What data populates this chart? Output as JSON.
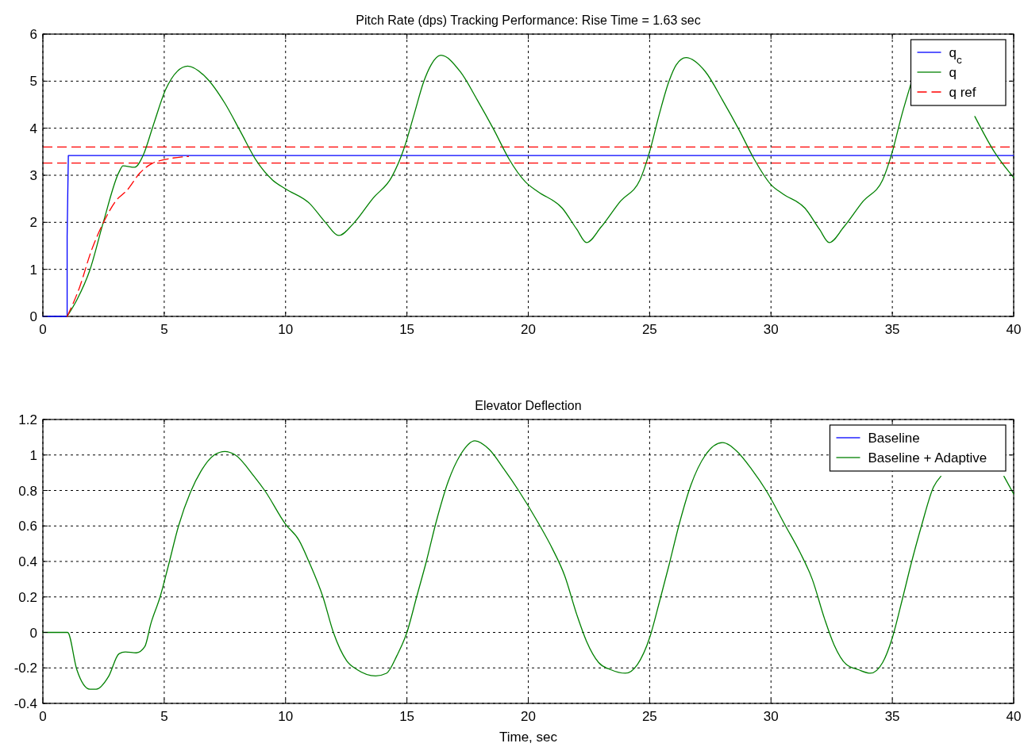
{
  "chart_data": [
    {
      "type": "line",
      "title": "Pitch Rate (dps) Tracking Performance: Rise Time = 1.63 sec",
      "xlim": [
        0,
        40
      ],
      "xticks": [
        0,
        5,
        10,
        15,
        20,
        25,
        30,
        35,
        40
      ],
      "ylim": [
        0,
        6
      ],
      "yticks": [
        0,
        1,
        2,
        3,
        4,
        5,
        6
      ],
      "grid": true,
      "legend": "top right",
      "series": [
        {
          "name": "q$_{c}$",
          "color": "#0000ff",
          "line_style": "solid",
          "x": [
            0,
            1,
            1,
            1.05,
            40
          ],
          "values": [
            0,
            0,
            1.7,
            3.42,
            3.42
          ]
        },
        {
          "name": "q",
          "color": "#008000",
          "line_style": "solid",
          "x": [
            1,
            1.4,
            1.94,
            2.49,
            3.14,
            3.3,
            3.79,
            4.12,
            4.56,
            5.05,
            5.54,
            5.97,
            6.74,
            7.5,
            8.15,
            8.81,
            9.46,
            10.0,
            10.99,
            11.64,
            12.19,
            12.84,
            13.6,
            14.37,
            14.9,
            15.3,
            15.7,
            16.0,
            16.4,
            17.2,
            17.9,
            18.6,
            19.2,
            19.9,
            20.4,
            21.4,
            22.0,
            22.4,
            23.0,
            23.8,
            24.6,
            25.0,
            25.4,
            25.8,
            26.1,
            26.5,
            27.3,
            28.0,
            28.7,
            29.3,
            30.0,
            30.5,
            31.4,
            32.0,
            32.4,
            33.0,
            33.8,
            34.6,
            35.0,
            35.4,
            35.8,
            36.9,
            38.4,
            39.2,
            40
          ],
          "values": [
            0,
            0.35,
            0.99,
            2.0,
            3.07,
            3.2,
            3.17,
            3.41,
            4.08,
            4.81,
            5.21,
            5.32,
            5.07,
            4.53,
            3.92,
            3.3,
            2.9,
            2.71,
            2.4,
            2.0,
            1.72,
            2.0,
            2.51,
            2.96,
            3.6,
            4.3,
            5.0,
            5.35,
            5.55,
            5.2,
            4.6,
            3.95,
            3.35,
            2.85,
            2.65,
            2.3,
            1.85,
            1.57,
            1.9,
            2.45,
            2.9,
            3.5,
            4.3,
            5.0,
            5.35,
            5.5,
            5.2,
            4.6,
            3.95,
            3.35,
            2.8,
            2.6,
            2.3,
            1.85,
            1.57,
            1.9,
            2.45,
            2.9,
            3.5,
            4.3,
            5.0,
            null,
            4.25,
            3.5,
            2.95
          ]
        },
        {
          "name": "q ref",
          "color": "#ff0000",
          "line_style": "dashed",
          "x": [
            1,
            1.5,
            2,
            2.5,
            3,
            3.5,
            4,
            4.5,
            5,
            6
          ],
          "values": [
            0,
            0.6,
            1.4,
            2.0,
            2.45,
            2.7,
            3.05,
            3.25,
            3.33,
            3.4
          ]
        }
      ],
      "ref_lines": [
        {
          "axis": "y",
          "value": 3.6,
          "color": "#ff0000",
          "line_style": "dashed"
        },
        {
          "axis": "y",
          "value": 3.26,
          "color": "#ff0000",
          "line_style": "dashed"
        }
      ]
    },
    {
      "type": "line",
      "title": "Elevator Deflection",
      "xlabel": "Time, sec",
      "xlim": [
        0,
        40
      ],
      "xticks": [
        0,
        5,
        10,
        15,
        20,
        25,
        30,
        35,
        40
      ],
      "ylim": [
        -0.4,
        1.2
      ],
      "yticks": [
        -0.4,
        -0.2,
        0,
        0.2,
        0.4,
        0.6,
        0.8,
        1,
        1.2
      ],
      "grid": true,
      "legend": "top right",
      "series": [
        {
          "name": "Baseline",
          "color": "#0000ff",
          "line_style": "solid"
        },
        {
          "name": "Baseline + Adaptive",
          "color": "#008000",
          "line_style": "solid",
          "x": [
            0,
            1.02,
            1.4,
            1.94,
            2.2,
            2.7,
            3.14,
            3.4,
            3.85,
            4.2,
            4.45,
            4.83,
            5.16,
            5.59,
            6.08,
            6.52,
            7.06,
            7.5,
            7.93,
            8.7,
            9.14,
            10.0,
            10.55,
            10.99,
            11.54,
            11.97,
            12.52,
            12.95,
            13.71,
            14.16,
            14.59,
            15.0,
            15.4,
            15.8,
            16.2,
            16.7,
            17.2,
            17.8,
            18.4,
            19.0,
            19.6,
            20.4,
            21.0,
            21.5,
            22.0,
            22.4,
            22.9,
            23.4,
            24.0,
            24.5,
            25.0,
            25.4,
            25.8,
            26.2,
            26.7,
            27.3,
            28.0,
            28.6,
            29.2,
            29.8,
            30.6,
            31.2,
            31.7,
            32.2,
            32.6,
            33.1,
            33.6,
            34.1,
            34.6,
            35.0,
            35.4,
            35.8,
            36.2,
            36.7,
            37.0,
            38.3,
            39.6,
            40
          ],
          "values": [
            0,
            0,
            -0.21,
            -0.32,
            -0.32,
            -0.25,
            -0.12,
            -0.11,
            -0.115,
            -0.08,
            0.05,
            0.2,
            0.37,
            0.6,
            0.79,
            0.91,
            1.0,
            1.02,
            1.0,
            0.88,
            0.8,
            0.61,
            0.52,
            0.39,
            0.2,
            0.0,
            -0.16,
            -0.21,
            -0.245,
            -0.23,
            -0.13,
            0,
            0.2,
            0.4,
            0.62,
            0.85,
            1.0,
            1.08,
            1.03,
            0.92,
            0.8,
            0.62,
            0.47,
            0.32,
            0.1,
            -0.05,
            -0.17,
            -0.21,
            -0.23,
            -0.18,
            -0.03,
            0.17,
            0.38,
            0.6,
            0.83,
            1.0,
            1.07,
            1.02,
            0.92,
            0.8,
            0.6,
            0.45,
            0.3,
            0.08,
            -0.07,
            -0.18,
            -0.21,
            -0.23,
            -0.17,
            -0.03,
            0.18,
            0.4,
            0.6,
            0.82,
            0.88,
            null,
            0.88,
            0.78
          ]
        }
      ]
    }
  ]
}
